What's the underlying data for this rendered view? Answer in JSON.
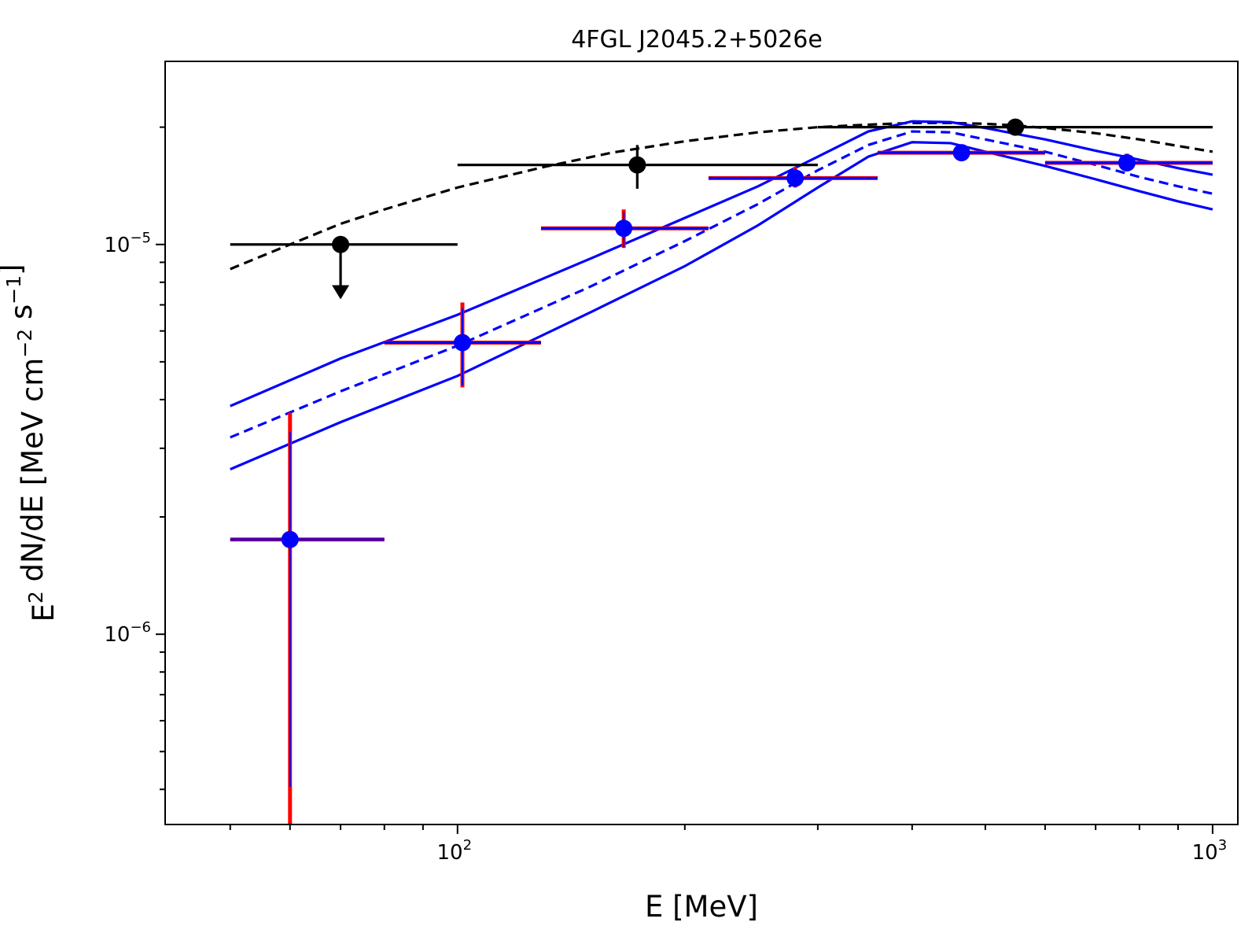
{
  "chart_data": {
    "type": "scatter",
    "title": "4FGL J2045.2+5026e",
    "xlabel": "E [MeV]",
    "ylabel": {
      "base": "E",
      "sup1": "2",
      "mid": " dN/dE [MeV cm",
      "sup2": "−2",
      "mid2": " s",
      "sup3": "−1",
      "end": "]"
    },
    "xscale": "log",
    "yscale": "log",
    "xlim": [
      41,
      1080
    ],
    "ylim": [
      3.25e-07,
      2.95e-05
    ],
    "x_ticks": [
      {
        "base": "10",
        "exp": "2",
        "value": 100
      },
      {
        "base": "10",
        "exp": "3",
        "value": 1000
      }
    ],
    "y_ticks": [
      {
        "base": "10",
        "exp": "−5",
        "value": 1e-05
      },
      {
        "base": "10",
        "exp": "−6",
        "value": 1e-06
      }
    ],
    "grid": false,
    "colors": {
      "catalog": "#000000",
      "fit": "#0000ff",
      "error": "#ff0000"
    },
    "series": [
      {
        "style": "catalog-points",
        "color": "#000000",
        "points": [
          {
            "x": 70,
            "xlo": 50,
            "xhi": 100,
            "y": 1e-05,
            "upper_limit": true,
            "arrow_to": 7.3e-06
          },
          {
            "x": 173,
            "xlo": 100,
            "xhi": 300,
            "y": 1.6e-05,
            "ylo": 1.39e-05,
            "yhi": 1.8e-05
          },
          {
            "x": 548,
            "xlo": 300,
            "xhi": 1000,
            "y": 2e-05,
            "ylo": 1.96e-05,
            "yhi": 2.04e-05
          }
        ]
      },
      {
        "style": "catalog-model",
        "color": "#000000",
        "dashed": true,
        "x": [
          50,
          60,
          70,
          80,
          100,
          130,
          160,
          200,
          250,
          300,
          350,
          400,
          450,
          500,
          550,
          600,
          700,
          800,
          900,
          1000
        ],
        "y": [
          8.65e-06,
          1e-05,
          1.13e-05,
          1.23e-05,
          1.4e-05,
          1.58e-05,
          1.72e-05,
          1.84e-05,
          1.94e-05,
          2e-05,
          2.03e-05,
          2.05e-05,
          2.05e-05,
          2.04e-05,
          2.02e-05,
          1.99e-05,
          1.93e-05,
          1.86e-05,
          1.79e-05,
          1.73e-05
        ]
      },
      {
        "style": "sed-points",
        "color": "#0000ff",
        "error_color": "#ff0000",
        "points": [
          {
            "x": 60,
            "xlo": 50,
            "xhi": 80,
            "y": 1.75e-06,
            "ylo": 3.2e-07,
            "yhi": 3.7e-06
          },
          {
            "x": 101.5,
            "xlo": 80,
            "xhi": 129,
            "y": 5.6e-06,
            "ylo": 4.3e-06,
            "yhi": 7.1e-06
          },
          {
            "x": 166,
            "xlo": 129,
            "xhi": 215,
            "y": 1.1e-05,
            "ylo": 9.8e-06,
            "yhi": 1.23e-05
          },
          {
            "x": 280,
            "xlo": 215,
            "xhi": 360,
            "y": 1.48e-05,
            "ylo": 1.4e-05,
            "yhi": 1.58e-05
          },
          {
            "x": 465,
            "xlo": 360,
            "xhi": 600,
            "y": 1.72e-05,
            "ylo": 1.67e-05,
            "yhi": 1.77e-05
          },
          {
            "x": 770,
            "xlo": 600,
            "xhi": 1000,
            "y": 1.62e-05,
            "ylo": 1.55e-05,
            "yhi": 1.71e-05
          }
        ]
      },
      {
        "style": "fit-model",
        "color": "#0000ff",
        "dashed": true,
        "x": [
          50,
          70,
          100,
          150,
          200,
          250,
          300,
          350,
          400,
          450,
          500,
          600,
          700,
          800,
          900,
          1000
        ],
        "y": [
          3.2e-06,
          4.2e-06,
          5.5e-06,
          7.8e-06,
          1.02e-05,
          1.27e-05,
          1.55e-05,
          1.8e-05,
          1.95e-05,
          1.94e-05,
          1.86e-05,
          1.73e-05,
          1.6e-05,
          1.49e-05,
          1.41e-05,
          1.35e-05
        ]
      },
      {
        "style": "fit-band-upper",
        "color": "#0000ff",
        "dashed": false,
        "x": [
          50,
          70,
          100,
          150,
          200,
          250,
          300,
          350,
          400,
          450,
          500,
          600,
          700,
          800,
          900,
          1000
        ],
        "y": [
          3.85e-06,
          5.1e-06,
          6.6e-06,
          9.2e-06,
          1.17e-05,
          1.41e-05,
          1.68e-05,
          1.95e-05,
          2.07e-05,
          2.06e-05,
          1.99e-05,
          1.86e-05,
          1.74e-05,
          1.65e-05,
          1.57e-05,
          1.51e-05
        ]
      },
      {
        "style": "fit-band-lower",
        "color": "#0000ff",
        "dashed": false,
        "x": [
          50,
          70,
          100,
          150,
          200,
          250,
          300,
          350,
          400,
          450,
          500,
          600,
          700,
          800,
          900,
          1000
        ],
        "y": [
          2.65e-06,
          3.5e-06,
          4.6e-06,
          6.7e-06,
          8.8e-06,
          1.12e-05,
          1.4e-05,
          1.68e-05,
          1.83e-05,
          1.82e-05,
          1.73e-05,
          1.59e-05,
          1.47e-05,
          1.37e-05,
          1.29e-05,
          1.23e-05
        ]
      }
    ]
  }
}
